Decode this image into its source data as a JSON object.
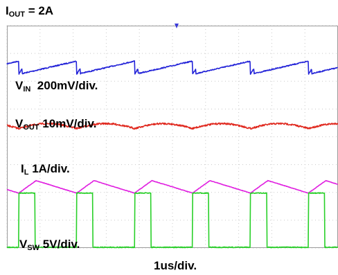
{
  "chart_data": {
    "type": "line",
    "title": "I_OUT = 2A",
    "title_main": "I",
    "title_sub": "OUT",
    "title_rest": " = 2A",
    "xlabel": "1us/div.",
    "grid": true,
    "time_div_us": 1,
    "period_us": 1.75,
    "cycles": 5.5,
    "series": [
      {
        "name": "V_IN",
        "label_main": "V",
        "label_sub": "IN",
        "label_rest": "  200mV/div.",
        "scale": "200mV/div.",
        "color": "#2323d8",
        "waveform": "ripple_sawtooth",
        "pk_pk_div": 0.45
      },
      {
        "name": "V_OUT",
        "label_main": "V",
        "label_sub": "OUT",
        "label_rest": " 10mV/div.",
        "scale": "10mV/div.",
        "color": "#e0281e",
        "waveform": "ripple_arc",
        "pk_pk_div": 0.35
      },
      {
        "name": "I_L",
        "label_main": "I",
        "label_sub": "L",
        "label_rest": " 1A/div.",
        "scale": "1A/div.",
        "color": "#e020e0",
        "waveform": "triangle",
        "pk_pk_div": 0.45
      },
      {
        "name": "V_SW",
        "label_main": "V",
        "label_sub": "SW",
        "label_rest": " 5V/div.",
        "scale": "5V/div.",
        "color": "#28d028",
        "waveform": "square",
        "pk_pk_div": 1.95
      }
    ],
    "colors": {
      "grid": "#c8c8c8",
      "frame": "#9a9a9a",
      "background": "#ffffff",
      "trigger": "#3a3ad8"
    }
  }
}
